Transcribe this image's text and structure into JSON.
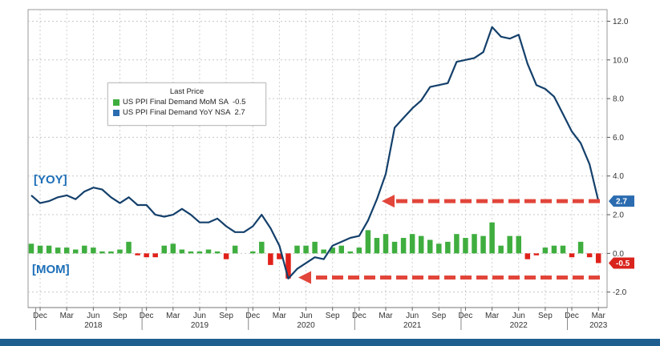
{
  "legend": {
    "title": "Last Price",
    "mom_label": "US PPI Final Demand MoM SA",
    "mom_value": "-0.5",
    "yoy_label": "US PPI Final Demand YoY NSA",
    "yoy_value": "2.7"
  },
  "annotations": {
    "yoy": "[YOY]",
    "mom": "[MOM]",
    "yoy_last_badge": "2.7",
    "mom_last_badge": "-0.5"
  },
  "colors": {
    "mom_pos": "#3fae3f",
    "mom_neg": "#e0211a",
    "yoy_line": "#14406b",
    "badge_blue": "#2b6cb0",
    "badge_red": "#d9241c",
    "arrow": "#e2453a"
  },
  "chart_data": {
    "type": "line",
    "y_ticks": [
      "12.0",
      "10.0",
      "8.0",
      "6.0",
      "4.0",
      "2.0",
      "0.0",
      "-2.0"
    ],
    "ylim": [
      -2.8,
      12.6
    ],
    "months": [
      "Nov 2017",
      "Dec 2017",
      "Jan 2018",
      "Feb 2018",
      "Mar 2018",
      "Apr 2018",
      "May 2018",
      "Jun 2018",
      "Jul 2018",
      "Aug 2018",
      "Sep 2018",
      "Oct 2018",
      "Nov 2018",
      "Dec 2018",
      "Jan 2019",
      "Feb 2019",
      "Mar 2019",
      "Apr 2019",
      "May 2019",
      "Jun 2019",
      "Jul 2019",
      "Aug 2019",
      "Sep 2019",
      "Oct 2019",
      "Nov 2019",
      "Dec 2019",
      "Jan 2020",
      "Feb 2020",
      "Mar 2020",
      "Apr 2020",
      "May 2020",
      "Jun 2020",
      "Jul 2020",
      "Aug 2020",
      "Sep 2020",
      "Oct 2020",
      "Nov 2020",
      "Dec 2020",
      "Jan 2021",
      "Feb 2021",
      "Mar 2021",
      "Apr 2021",
      "May 2021",
      "Jun 2021",
      "Jul 2021",
      "Aug 2021",
      "Sep 2021",
      "Oct 2021",
      "Nov 2021",
      "Dec 2021",
      "Jan 2022",
      "Feb 2022",
      "Mar 2022",
      "Apr 2022",
      "May 2022",
      "Jun 2022",
      "Jul 2022",
      "Aug 2022",
      "Sep 2022",
      "Oct 2022",
      "Nov 2022",
      "Dec 2022",
      "Jan 2023",
      "Feb 2023",
      "Mar 2023"
    ],
    "series": [
      {
        "name": "US PPI Final Demand YoY NSA",
        "kind": "line",
        "values": [
          3.0,
          2.6,
          2.7,
          2.9,
          3.0,
          2.8,
          3.2,
          3.4,
          3.3,
          2.9,
          2.6,
          2.9,
          2.5,
          2.5,
          2.0,
          1.9,
          2.0,
          2.3,
          2.0,
          1.6,
          1.6,
          1.8,
          1.4,
          1.1,
          1.1,
          1.4,
          2.0,
          1.3,
          0.4,
          -1.3,
          -0.8,
          -0.5,
          -0.2,
          -0.3,
          0.4,
          0.6,
          0.8,
          0.9,
          1.7,
          2.8,
          4.1,
          6.5,
          7.0,
          7.5,
          7.9,
          8.6,
          8.7,
          8.8,
          9.9,
          10.0,
          10.1,
          10.4,
          11.7,
          11.2,
          11.1,
          11.3,
          9.8,
          8.7,
          8.5,
          8.1,
          7.2,
          6.3,
          5.7,
          4.6,
          2.7
        ]
      },
      {
        "name": "US PPI Final Demand MoM SA",
        "kind": "bar",
        "values": [
          0.5,
          0.4,
          0.4,
          0.3,
          0.3,
          0.2,
          0.4,
          0.3,
          0.1,
          0.1,
          0.2,
          0.6,
          -0.1,
          -0.2,
          -0.2,
          0.4,
          0.5,
          0.2,
          0.1,
          0.1,
          0.2,
          0.1,
          -0.3,
          0.4,
          0.0,
          0.1,
          0.6,
          -0.6,
          -0.3,
          -1.3,
          0.4,
          0.4,
          0.6,
          0.2,
          0.3,
          0.4,
          0.1,
          0.3,
          1.2,
          0.8,
          1.0,
          0.6,
          0.8,
          1.0,
          0.9,
          0.7,
          0.5,
          0.6,
          1.0,
          0.8,
          1.0,
          0.9,
          1.6,
          0.4,
          0.9,
          0.9,
          -0.3,
          -0.1,
          0.3,
          0.4,
          0.4,
          -0.2,
          0.6,
          -0.2,
          -0.5
        ]
      }
    ],
    "x_tick_labels": [
      "Dec",
      "Mar",
      "Jun",
      "Sep",
      "Dec",
      "Mar",
      "Jun",
      "Sep",
      "Dec",
      "Mar",
      "Jun",
      "Sep",
      "Dec",
      "Mar",
      "Jun",
      "Sep",
      "Dec",
      "Mar",
      "Jun",
      "Sep",
      "Dec",
      "Mar"
    ],
    "x_tick_months": [
      "Dec 2017",
      "Mar 2018",
      "Jun 2018",
      "Sep 2018",
      "Dec 2018",
      "Mar 2019",
      "Jun 2019",
      "Sep 2019",
      "Dec 2019",
      "Mar 2020",
      "Jun 2020",
      "Sep 2020",
      "Dec 2020",
      "Mar 2021",
      "Jun 2021",
      "Sep 2021",
      "Dec 2021",
      "Mar 2022",
      "Jun 2022",
      "Sep 2022",
      "Dec 2022",
      "Mar 2023"
    ],
    "year_labels": [
      "2018",
      "2019",
      "2020",
      "2021",
      "2022",
      "2023"
    ],
    "year_label_months": [
      "Jun 2018",
      "Jun 2019",
      "Jun 2020",
      "Jun 2021",
      "Jun 2022",
      "Mar 2023"
    ],
    "year_separator_months": [
      "Dec 2017",
      "Dec 2018",
      "Dec 2019",
      "Dec 2020",
      "Dec 2021",
      "Dec 2022"
    ],
    "grid": true,
    "legend_position": "top-left",
    "arrow_targets": {
      "yoy_value": 2.7,
      "mom_value": -0.5
    }
  }
}
